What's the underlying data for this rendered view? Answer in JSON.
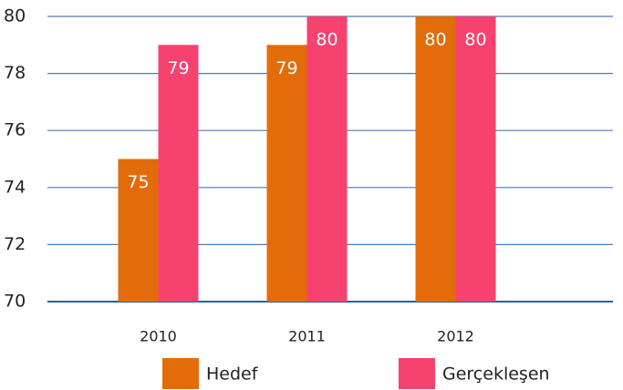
{
  "chart_data": {
    "type": "bar",
    "categories": [
      "2010",
      "2011",
      "2012"
    ],
    "series": [
      {
        "name": "Hedef",
        "color": "#e36c0a",
        "values": [
          75,
          79,
          80
        ]
      },
      {
        "name": "Gerçekleşen",
        "color": "#f5426f",
        "values": [
          79,
          80,
          80
        ]
      }
    ],
    "ylim": [
      70,
      80
    ],
    "yticks": [
      70,
      72,
      74,
      76,
      78,
      80
    ],
    "grid": true,
    "legend": "bottom"
  }
}
